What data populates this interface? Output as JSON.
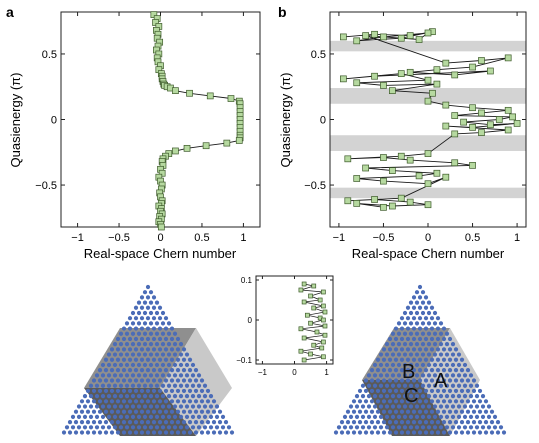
{
  "panel_labels": {
    "a": "a",
    "b": "b"
  },
  "colors": {
    "marker_fill": "#b6d9a0",
    "marker_stroke": "#3d5a2a",
    "line": "#1a1a1a",
    "band": "#d3d3d3",
    "dot": "#4b6cb7",
    "region_mid": "#8f8f8f",
    "region_dark": "#5a5a5a",
    "region_light": "#c9c9c9"
  },
  "chart_data": [
    {
      "id": "a",
      "type": "scatter",
      "line": true,
      "marker": "square",
      "xlabel": "Real-space Chern number",
      "ylabel": "Quasienergy (π)",
      "xlim": [
        -1.2,
        1.2
      ],
      "ylim": [
        -0.82,
        0.82
      ],
      "xticks": [
        -1,
        -0.5,
        0,
        0.5,
        1
      ],
      "xticklabels": [
        "−1",
        "−0.5",
        "0",
        "0.5",
        "1"
      ],
      "yticks": [
        -0.5,
        0,
        0.5
      ],
      "yticklabels": [
        "−0.5",
        "0",
        "0.5"
      ],
      "series": [
        {
          "x": [
            -0.08,
            -0.04,
            -0.06,
            -0.02,
            -0.05,
            -0.03,
            -0.04,
            -0.01,
            -0.03,
            -0.05,
            -0.02,
            -0.04,
            -0.03,
            0.0,
            -0.02,
            0.01,
            0.02,
            0.02,
            0.03,
            0.04,
            0.05,
            0.08,
            0.12,
            0.18,
            0.35,
            0.6,
            0.85,
            0.95,
            0.96,
            0.96,
            0.96,
            0.96,
            0.96,
            0.96,
            0.96,
            0.96,
            0.96,
            0.96,
            0.95,
            0.8,
            0.55,
            0.32,
            0.18,
            0.1,
            0.06,
            0.03,
            0.02,
            0.03,
            0.0,
            0.02,
            -0.02,
            0.0,
            0.02,
            0.01,
            -0.01,
            0.0,
            0.02,
            0.01,
            -0.02,
            0.01,
            0.0,
            0.02,
            -0.01,
            0.01,
            -0.02,
            0.0,
            0.01
          ],
          "y": [
            0.8,
            0.77,
            0.74,
            0.71,
            0.68,
            0.65,
            0.62,
            0.59,
            0.56,
            0.53,
            0.5,
            0.47,
            0.44,
            0.41,
            0.38,
            0.35,
            0.33,
            0.31,
            0.29,
            0.27,
            0.26,
            0.25,
            0.24,
            0.22,
            0.2,
            0.18,
            0.16,
            0.14,
            0.12,
            0.09,
            0.06,
            0.03,
            0.0,
            -0.03,
            -0.06,
            -0.09,
            -0.12,
            -0.14,
            -0.16,
            -0.18,
            -0.2,
            -0.22,
            -0.24,
            -0.26,
            -0.28,
            -0.3,
            -0.32,
            -0.35,
            -0.38,
            -0.41,
            -0.44,
            -0.47,
            -0.5,
            -0.53,
            -0.56,
            -0.59,
            -0.62,
            -0.64,
            -0.66,
            -0.68,
            -0.7,
            -0.72,
            -0.74,
            -0.76,
            -0.78,
            -0.8,
            -0.82
          ]
        }
      ]
    },
    {
      "id": "b",
      "type": "scatter",
      "line": true,
      "marker": "square",
      "xlabel": "Real-space Chern number",
      "ylabel": "Quasienergy (π)",
      "xlim": [
        -1.1,
        1.1
      ],
      "ylim": [
        -0.82,
        0.82
      ],
      "xticks": [
        -1,
        -0.5,
        0,
        0.5,
        1
      ],
      "xticklabels": [
        "−1",
        "−0.5",
        "0",
        "0.5",
        "1"
      ],
      "yticks": [
        -0.5,
        0,
        0.5
      ],
      "yticklabels": [
        "−0.5",
        "0",
        "0.5"
      ],
      "bands": [
        [
          0.52,
          0.6
        ],
        [
          0.12,
          0.24
        ],
        [
          -0.24,
          -0.12
        ],
        [
          -0.6,
          -0.52
        ]
      ],
      "series": [
        {
          "x": [
            -0.95,
            -0.6,
            -0.2,
            0.05,
            -0.3,
            -0.8,
            -0.5,
            0.0,
            -0.1,
            -0.7,
            0.2,
            0.6,
            0.9,
            0.5,
            0.1,
            -0.2,
            0.3,
            0.7,
            -0.6,
            -0.95,
            -0.3,
            0.0,
            -0.8,
            -0.5,
            0.1,
            -0.4,
            0.05,
            0.0,
            0.2,
            0.5,
            0.9,
            0.6,
            0.3,
            0.95,
            0.8,
            0.4,
            0.7,
            1.0,
            0.5,
            0.2,
            0.9,
            0.6,
            0.3,
            0.0,
            -0.3,
            -0.9,
            -0.5,
            -0.2,
            0.3,
            0.5,
            -0.7,
            -0.4,
            0.1,
            -0.1,
            -0.8,
            -0.5,
            0.0,
            0.2,
            -0.3,
            -0.9,
            -0.6,
            -0.2,
            0.0,
            -0.4,
            -0.8,
            -0.5
          ],
          "y": [
            0.63,
            0.65,
            0.64,
            0.67,
            0.62,
            0.6,
            0.63,
            0.66,
            0.61,
            0.64,
            0.43,
            0.45,
            0.47,
            0.4,
            0.38,
            0.36,
            0.34,
            0.37,
            0.33,
            0.31,
            0.35,
            0.3,
            0.28,
            0.26,
            0.27,
            0.22,
            0.2,
            0.14,
            0.11,
            0.09,
            0.07,
            0.05,
            0.03,
            0.02,
            0.0,
            -0.02,
            -0.04,
            -0.03,
            -0.06,
            -0.05,
            -0.08,
            -0.1,
            -0.11,
            -0.26,
            -0.28,
            -0.3,
            -0.29,
            -0.31,
            -0.33,
            -0.35,
            -0.37,
            -0.39,
            -0.41,
            -0.43,
            -0.45,
            -0.47,
            -0.49,
            -0.44,
            -0.6,
            -0.62,
            -0.61,
            -0.63,
            -0.65,
            -0.66,
            -0.64,
            -0.67
          ]
        }
      ]
    },
    {
      "id": "inset",
      "type": "scatter",
      "line": true,
      "marker": "square",
      "xlim": [
        -1.2,
        1.2
      ],
      "ylim": [
        -0.11,
        0.11
      ],
      "xticks": [
        -1,
        0,
        1
      ],
      "xticklabels": [
        "−1",
        "0",
        "1"
      ],
      "yticks": [
        -0.1,
        0,
        0.1
      ],
      "yticklabels": [
        "−0.1",
        "0",
        "0.1"
      ],
      "series": [
        {
          "x": [
            0.3,
            0.6,
            0.2,
            0.9,
            0.5,
            0.8,
            0.3,
            0.9,
            0.6,
            0.95,
            0.4,
            0.8,
            0.9,
            0.5,
            0.95,
            0.2,
            0.7,
            0.95,
            0.3,
            0.9,
            0.6,
            0.85,
            0.2,
            0.5,
            0.9,
            0.3
          ],
          "y": [
            0.09,
            0.085,
            0.075,
            0.07,
            0.06,
            0.05,
            0.045,
            0.035,
            0.03,
            0.02,
            0.012,
            0.005,
            0.0,
            -0.008,
            -0.015,
            -0.022,
            -0.03,
            -0.038,
            -0.045,
            -0.055,
            -0.063,
            -0.07,
            -0.078,
            -0.085,
            -0.092,
            -0.1
          ]
        }
      ]
    }
  ],
  "lattice_left": {
    "regions": []
  },
  "lattice_right": {
    "region_labels": [
      "A",
      "B",
      "C"
    ]
  }
}
